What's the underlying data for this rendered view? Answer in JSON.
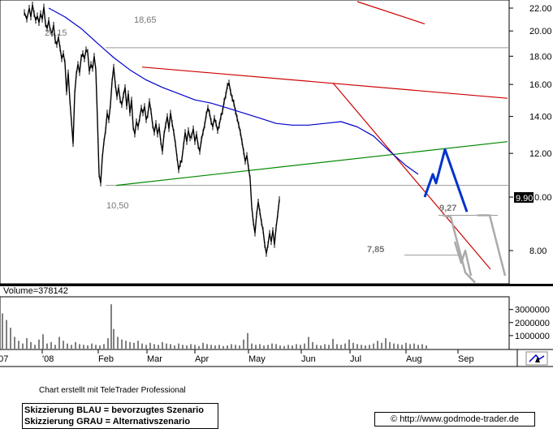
{
  "credit": "Chart erstellt mit TeleTrader Professional",
  "legend": {
    "line1": "Skizzierung BLAU = bevorzugtes Szenario",
    "line2": "Skizzierung GRAU = Alternativszenario"
  },
  "copyright": "© http://www.godmode-trader.de",
  "volume_label": "Volume=378142",
  "colors": {
    "price": "#000000",
    "moving_average": "#0000cc",
    "resistance": "#cc0000",
    "support": "#008800",
    "blue_scenario": "#0033cc",
    "gray_scenario": "#aaaaaa",
    "last_price_tag": "#000000"
  },
  "chart_data": {
    "type": "line",
    "x_ticks": [
      "'07",
      "'08",
      "Feb",
      "Mar",
      "Apr",
      "May",
      "Jun",
      "Jul",
      "Aug",
      "Sep"
    ],
    "y_ticks": [
      "22.00",
      "20.00",
      "18.00",
      "16.00",
      "14.00",
      "12.00",
      "10.00",
      "8.00"
    ],
    "y_tick_values": [
      22,
      20,
      18,
      16,
      14,
      12,
      10,
      8
    ],
    "ylim": [
      7.0,
      22.6
    ],
    "scale": "log",
    "last_price": "9.90",
    "annotations": {
      "high_a": "20,15",
      "high_b": "18,65",
      "low_feb": "10,50",
      "low_jul": "7,85",
      "level_aug": "9,27"
    },
    "price_series": [
      [
        0,
        21.6
      ],
      [
        3,
        21.0
      ],
      [
        6,
        22.0
      ],
      [
        8,
        21.2
      ],
      [
        10,
        22.3
      ],
      [
        12,
        21.5
      ],
      [
        14,
        20.9
      ],
      [
        16,
        21.3
      ],
      [
        18,
        20.7
      ],
      [
        20,
        21.5
      ],
      [
        22,
        21.0
      ],
      [
        24,
        22.1
      ],
      [
        26,
        20.6
      ],
      [
        28,
        20.2
      ],
      [
        30,
        20.9
      ],
      [
        32,
        20.0
      ],
      [
        34,
        19.8
      ],
      [
        36,
        20.5
      ],
      [
        38,
        19.2
      ],
      [
        40,
        18.9
      ],
      [
        42,
        19.5
      ],
      [
        44,
        18.6
      ],
      [
        46,
        17.8
      ],
      [
        48,
        18.2
      ],
      [
        50,
        17.5
      ],
      [
        52,
        15.5
      ],
      [
        54,
        16.8
      ],
      [
        56,
        15.0
      ],
      [
        58,
        13.7
      ],
      [
        60,
        12.5
      ],
      [
        62,
        15.4
      ],
      [
        64,
        16.7
      ],
      [
        66,
        17.4
      ],
      [
        68,
        16.8
      ],
      [
        70,
        17.9
      ],
      [
        72,
        18.2
      ],
      [
        74,
        17.8
      ],
      [
        76,
        18.5
      ],
      [
        78,
        18.3
      ],
      [
        80,
        16.9
      ],
      [
        82,
        17.4
      ],
      [
        84,
        17.1
      ],
      [
        86,
        18.0
      ],
      [
        88,
        17.0
      ],
      [
        90,
        13.8
      ],
      [
        92,
        11.0
      ],
      [
        94,
        10.6
      ],
      [
        96,
        11.8
      ],
      [
        98,
        12.6
      ],
      [
        100,
        13.2
      ],
      [
        102,
        14.2
      ],
      [
        104,
        13.8
      ],
      [
        106,
        14.7
      ],
      [
        108,
        16.2
      ],
      [
        110,
        17.2
      ],
      [
        112,
        16.0
      ],
      [
        114,
        15.2
      ],
      [
        116,
        15.8
      ],
      [
        118,
        15.0
      ],
      [
        120,
        14.7
      ],
      [
        122,
        15.3
      ],
      [
        124,
        15.8
      ],
      [
        126,
        14.6
      ],
      [
        128,
        15.4
      ],
      [
        130,
        14.2
      ],
      [
        132,
        15.0
      ],
      [
        134,
        13.4
      ],
      [
        136,
        13.0
      ],
      [
        138,
        13.7
      ],
      [
        140,
        13.4
      ],
      [
        142,
        13.9
      ],
      [
        144,
        14.5
      ],
      [
        146,
        14.2
      ],
      [
        148,
        14.6
      ],
      [
        150,
        13.8
      ],
      [
        152,
        14.1
      ],
      [
        154,
        14.9
      ],
      [
        156,
        14.3
      ],
      [
        158,
        13.5
      ],
      [
        160,
        13.1
      ],
      [
        162,
        13.6
      ],
      [
        164,
        13.0
      ],
      [
        166,
        13.4
      ],
      [
        168,
        12.6
      ],
      [
        170,
        12.1
      ],
      [
        172,
        13.0
      ],
      [
        174,
        13.5
      ],
      [
        176,
        14.0
      ],
      [
        178,
        13.3
      ],
      [
        180,
        14.2
      ],
      [
        182,
        13.6
      ],
      [
        184,
        13.1
      ],
      [
        186,
        12.5
      ],
      [
        188,
        11.8
      ],
      [
        190,
        11.2
      ],
      [
        192,
        11.5
      ],
      [
        194,
        11.7
      ],
      [
        196,
        12.4
      ],
      [
        198,
        13.1
      ],
      [
        200,
        12.6
      ],
      [
        202,
        13.2
      ],
      [
        204,
        12.8
      ],
      [
        206,
        12.9
      ],
      [
        208,
        13.3
      ],
      [
        210,
        12.6
      ],
      [
        212,
        13.0
      ],
      [
        214,
        12.4
      ],
      [
        216,
        12.1
      ],
      [
        218,
        12.7
      ],
      [
        220,
        13.1
      ],
      [
        222,
        13.5
      ],
      [
        224,
        14.1
      ],
      [
        226,
        14.5
      ],
      [
        228,
        14.2
      ],
      [
        230,
        13.7
      ],
      [
        232,
        13.4
      ],
      [
        234,
        13.9
      ],
      [
        236,
        13.6
      ],
      [
        238,
        13.2
      ],
      [
        240,
        13.5
      ],
      [
        242,
        14.0
      ],
      [
        244,
        14.3
      ],
      [
        246,
        14.9
      ],
      [
        248,
        15.3
      ],
      [
        250,
        15.9
      ],
      [
        252,
        16.1
      ],
      [
        254,
        15.5
      ],
      [
        256,
        15.1
      ],
      [
        258,
        14.8
      ],
      [
        260,
        14.3
      ],
      [
        262,
        13.9
      ],
      [
        264,
        13.5
      ],
      [
        266,
        13.1
      ],
      [
        268,
        12.6
      ],
      [
        270,
        12.1
      ],
      [
        272,
        11.6
      ],
      [
        274,
        11.9
      ],
      [
        276,
        11.3
      ],
      [
        278,
        10.8
      ],
      [
        280,
        9.6
      ],
      [
        282,
        9.0
      ],
      [
        284,
        8.6
      ],
      [
        286,
        9.3
      ],
      [
        288,
        9.8
      ],
      [
        290,
        9.4
      ],
      [
        292,
        9.0
      ],
      [
        294,
        8.7
      ],
      [
        296,
        8.2
      ],
      [
        298,
        7.9
      ],
      [
        300,
        8.2
      ],
      [
        302,
        8.6
      ],
      [
        304,
        8.3
      ],
      [
        306,
        8.7
      ],
      [
        308,
        8.2
      ],
      [
        310,
        8.8
      ],
      [
        312,
        9.3
      ],
      [
        314,
        9.9
      ]
    ],
    "moving_average": [
      [
        60,
        22.0
      ],
      [
        80,
        21.2
      ],
      [
        100,
        20.2
      ],
      [
        120,
        19.0
      ],
      [
        140,
        17.9
      ],
      [
        160,
        17.0
      ],
      [
        180,
        16.3
      ],
      [
        200,
        15.8
      ],
      [
        220,
        15.4
      ],
      [
        240,
        15.0
      ],
      [
        260,
        14.8
      ],
      [
        280,
        14.5
      ],
      [
        300,
        14.2
      ],
      [
        320,
        13.9
      ],
      [
        340,
        13.6
      ],
      [
        360,
        13.5
      ],
      [
        380,
        13.5
      ],
      [
        400,
        13.6
      ],
      [
        420,
        13.7
      ],
      [
        440,
        13.4
      ],
      [
        460,
        12.9
      ],
      [
        480,
        12.1
      ],
      [
        500,
        11.4
      ],
      [
        515,
        11.0
      ]
    ],
    "resistance_lines": [
      {
        "from": [
          175,
          17.2
        ],
        "to": [
          625,
          15.1
        ]
      },
      {
        "from": [
          410,
          16.1
        ],
        "to": [
          604,
          7.4
        ]
      },
      {
        "from": [
          440,
          22.6
        ],
        "to": [
          523,
          20.6
        ]
      }
    ],
    "support_line": {
      "from": [
        143,
        10.5
      ],
      "to": [
        625,
        12.6
      ]
    },
    "horizontal_levels": [
      18.65,
      10.5
    ],
    "level_927": {
      "from": [
        540,
        9.27
      ],
      "to": [
        613,
        9.27
      ]
    },
    "level_785": {
      "from": [
        498,
        7.85
      ],
      "to": [
        565,
        7.85
      ]
    },
    "blue_scenario": [
      [
        523,
        10.0
      ],
      [
        533,
        11.0
      ],
      [
        537,
        10.6
      ],
      [
        548,
        12.2
      ],
      [
        575,
        9.4
      ]
    ],
    "gray_scenario_a": [
      [
        545,
        9.27
      ],
      [
        555,
        9.2
      ],
      [
        573,
        7.3
      ],
      [
        585,
        7.0
      ]
    ],
    "gray_scenario_b": [
      [
        588,
        9.27
      ],
      [
        603,
        9.27
      ],
      [
        622,
        7.2
      ]
    ],
    "gray_scenario_c": [
      [
        560,
        8.3
      ],
      [
        568,
        7.6
      ],
      [
        573,
        8.0
      ],
      [
        580,
        7.2
      ]
    ],
    "volume_ticks": [
      "3000000",
      "2000000",
      "1000000"
    ],
    "volume_tick_values": [
      3000000,
      2000000,
      1000000
    ],
    "volume_max": 3600000,
    "volume": [
      [
        3,
        2700000
      ],
      [
        8,
        2200000
      ],
      [
        13,
        1600000
      ],
      [
        18,
        900000
      ],
      [
        23,
        600000
      ],
      [
        28,
        400000
      ],
      [
        33,
        800000
      ],
      [
        38,
        500000
      ],
      [
        43,
        300000
      ],
      [
        48,
        700000
      ],
      [
        53,
        1100000
      ],
      [
        58,
        400000
      ],
      [
        63,
        500000
      ],
      [
        68,
        300000
      ],
      [
        73,
        900000
      ],
      [
        78,
        600000
      ],
      [
        83,
        400000
      ],
      [
        88,
        300000
      ],
      [
        93,
        500000
      ],
      [
        98,
        350000
      ],
      [
        103,
        300000
      ],
      [
        108,
        250000
      ],
      [
        113,
        400000
      ],
      [
        118,
        300000
      ],
      [
        123,
        250000
      ],
      [
        128,
        350000
      ],
      [
        133,
        800000
      ],
      [
        137,
        3400000
      ],
      [
        140,
        1500000
      ],
      [
        145,
        900000
      ],
      [
        150,
        700000
      ],
      [
        155,
        600000
      ],
      [
        160,
        500000
      ],
      [
        165,
        450000
      ],
      [
        170,
        600000
      ],
      [
        175,
        400000
      ],
      [
        180,
        300000
      ],
      [
        185,
        450000
      ],
      [
        190,
        350000
      ],
      [
        195,
        300000
      ],
      [
        200,
        500000
      ],
      [
        205,
        400000
      ],
      [
        210,
        350000
      ],
      [
        215,
        250000
      ],
      [
        220,
        400000
      ],
      [
        225,
        300000
      ],
      [
        230,
        250000
      ],
      [
        235,
        350000
      ],
      [
        240,
        300000
      ],
      [
        245,
        200000
      ],
      [
        250,
        450000
      ],
      [
        255,
        350000
      ],
      [
        260,
        300000
      ],
      [
        265,
        250000
      ],
      [
        270,
        300000
      ],
      [
        275,
        200000
      ],
      [
        280,
        250000
      ],
      [
        285,
        350000
      ],
      [
        290,
        300000
      ],
      [
        295,
        250000
      ],
      [
        300,
        700000
      ],
      [
        305,
        1200000
      ],
      [
        310,
        400000
      ],
      [
        315,
        300000
      ],
      [
        320,
        350000
      ],
      [
        325,
        250000
      ],
      [
        330,
        300000
      ],
      [
        335,
        400000
      ],
      [
        340,
        350000
      ],
      [
        345,
        250000
      ],
      [
        350,
        200000
      ],
      [
        355,
        300000
      ],
      [
        360,
        250000
      ],
      [
        365,
        350000
      ],
      [
        370,
        300000
      ],
      [
        375,
        400000
      ],
      [
        380,
        900000
      ],
      [
        385,
        500000
      ],
      [
        390,
        300000
      ],
      [
        395,
        250000
      ],
      [
        400,
        350000
      ],
      [
        405,
        300000
      ],
      [
        410,
        750000
      ],
      [
        415,
        350000
      ],
      [
        420,
        300000
      ],
      [
        425,
        400000
      ],
      [
        430,
        700000
      ],
      [
        435,
        450000
      ],
      [
        440,
        350000
      ],
      [
        445,
        300000
      ],
      [
        450,
        250000
      ],
      [
        455,
        300000
      ],
      [
        460,
        400000
      ],
      [
        465,
        600000
      ],
      [
        470,
        450000
      ],
      [
        475,
        800000
      ],
      [
        480,
        500000
      ],
      [
        485,
        400000
      ],
      [
        490,
        350000
      ],
      [
        495,
        300000
      ],
      [
        500,
        450000
      ],
      [
        505,
        350000
      ],
      [
        510,
        400000
      ],
      [
        515,
        300000
      ],
      [
        520,
        350000
      ],
      [
        525,
        250000
      ]
    ]
  }
}
